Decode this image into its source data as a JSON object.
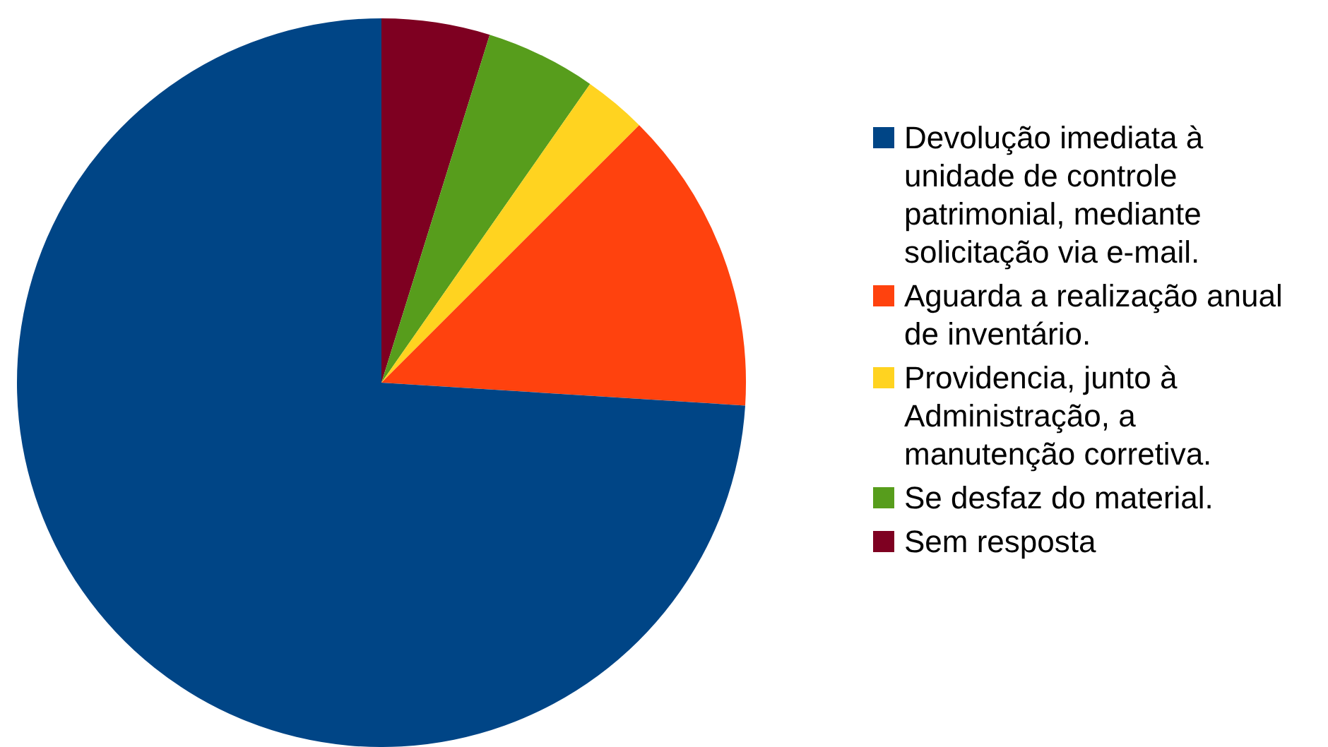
{
  "chart_data": {
    "type": "pie",
    "categories": [
      "Devolução imediata à unidade de controle patrimonial, mediante solicitação via e-mail.",
      "Aguarda a realização anual de inventário.",
      "Providencia, junto à Administração, a manutenção corretiva.",
      "Se desfaz do material.",
      "Sem resposta"
    ],
    "values": [
      74,
      13.5,
      2.8,
      4.9,
      4.8
    ],
    "colors": [
      "#004586",
      "#ff420e",
      "#ffd320",
      "#579d1c",
      "#7e0021"
    ],
    "legend": "right"
  }
}
